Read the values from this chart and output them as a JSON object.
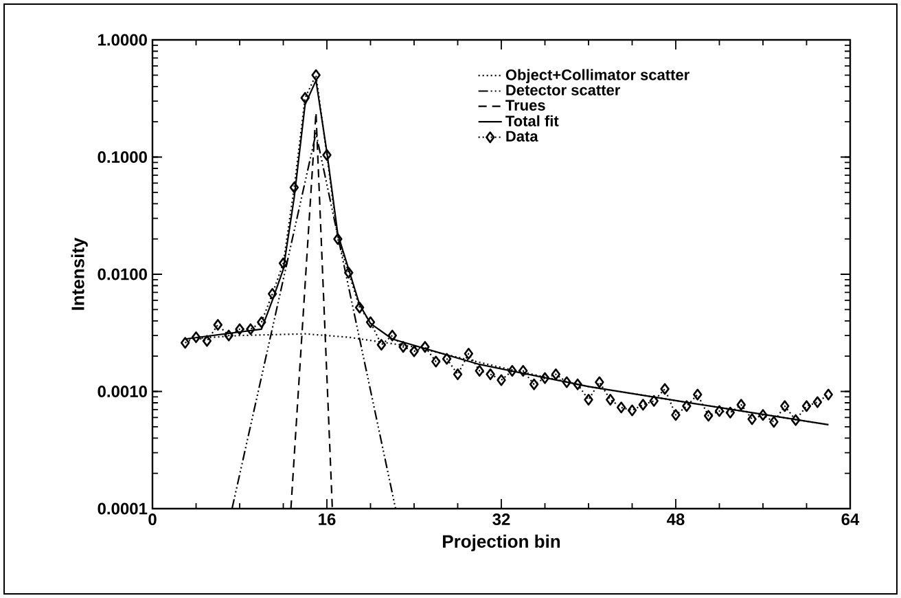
{
  "chart_data": {
    "type": "line",
    "xlabel": "Projection bin",
    "ylabel": "Intensity",
    "log": "y",
    "xlim": [
      0,
      64
    ],
    "xticks": [
      0,
      16,
      32,
      48,
      64
    ],
    "ylim": [
      0.0001,
      1
    ],
    "yticks": [
      {
        "value": 0.0001,
        "label": "0.0001"
      },
      {
        "value": 0.001,
        "label": "0.0010"
      },
      {
        "value": 0.01,
        "label": "0.0100"
      },
      {
        "value": 0.1,
        "label": "0.1000"
      },
      {
        "value": 1,
        "label": "1.0000"
      }
    ],
    "grid": false,
    "legend": "top",
    "series": [
      {
        "name": "Object+Collimator scatter",
        "color": "#000000",
        "line_style": "dotted",
        "marker": "none",
        "x": [
          3,
          8,
          14,
          18,
          24,
          32,
          40,
          50,
          62
        ],
        "values": [
          0.0028,
          0.003,
          0.0031,
          0.0029,
          0.0024,
          0.0016,
          0.0011,
          0.00078,
          0.00052
        ]
      },
      {
        "name": "Detector scatter",
        "color": "#000000",
        "line_style": "dashdotdotted",
        "marker": "none",
        "x": [
          7.3,
          15,
          22.3
        ],
        "values": [
          0.0001,
          0.16,
          0.0001
        ]
      },
      {
        "name": "Trues",
        "color": "#000000",
        "line_style": "dashed",
        "marker": "none",
        "x": [
          12.7,
          15,
          16.5
        ],
        "values": [
          0.0001,
          0.24,
          0.0001
        ]
      },
      {
        "name": "Total fit",
        "color": "#000000",
        "line_style": "solid",
        "marker": "none",
        "x": [
          3,
          10,
          11,
          12,
          13,
          14,
          15,
          16,
          17,
          18,
          19,
          20,
          22,
          30,
          40,
          50,
          62
        ],
        "values": [
          0.0028,
          0.0034,
          0.006,
          0.011,
          0.045,
          0.28,
          0.45,
          0.11,
          0.022,
          0.011,
          0.0055,
          0.0038,
          0.0028,
          0.0017,
          0.0011,
          0.00078,
          0.00052
        ]
      },
      {
        "name": "Data",
        "color": "#000000",
        "line_style": "dotted",
        "marker": "diamond",
        "x": [
          3,
          4,
          5,
          6,
          7,
          8,
          9,
          10,
          11,
          12,
          13,
          14,
          15,
          16,
          17,
          18,
          19,
          20,
          21,
          22,
          23,
          24,
          25,
          26,
          27,
          28,
          29,
          30,
          31,
          32,
          33,
          34,
          35,
          36,
          37,
          38,
          39,
          40,
          41,
          42,
          43,
          44,
          45,
          46,
          47,
          48,
          49,
          50,
          51,
          52,
          53,
          54,
          55,
          56,
          57,
          58,
          59,
          60,
          61,
          62
        ],
        "values": [
          0.0026,
          0.0029,
          0.0027,
          0.0037,
          0.003,
          0.0034,
          0.0034,
          0.0039,
          0.0068,
          0.0124,
          0.055,
          0.32,
          0.5,
          0.104,
          0.02,
          0.0103,
          0.0052,
          0.0039,
          0.0025,
          0.003,
          0.0024,
          0.0022,
          0.0024,
          0.0018,
          0.0019,
          0.0014,
          0.0021,
          0.0015,
          0.0014,
          0.00125,
          0.0015,
          0.0015,
          0.00115,
          0.0013,
          0.0014,
          0.0012,
          0.00115,
          0.00085,
          0.0012,
          0.00085,
          0.00073,
          0.00069,
          0.00077,
          0.00083,
          0.00105,
          0.00063,
          0.00075,
          0.00094,
          0.00062,
          0.00068,
          0.00066,
          0.00077,
          0.00058,
          0.00063,
          0.00055,
          0.00075,
          0.00057,
          0.00075,
          0.00081,
          0.00094
        ]
      }
    ]
  }
}
